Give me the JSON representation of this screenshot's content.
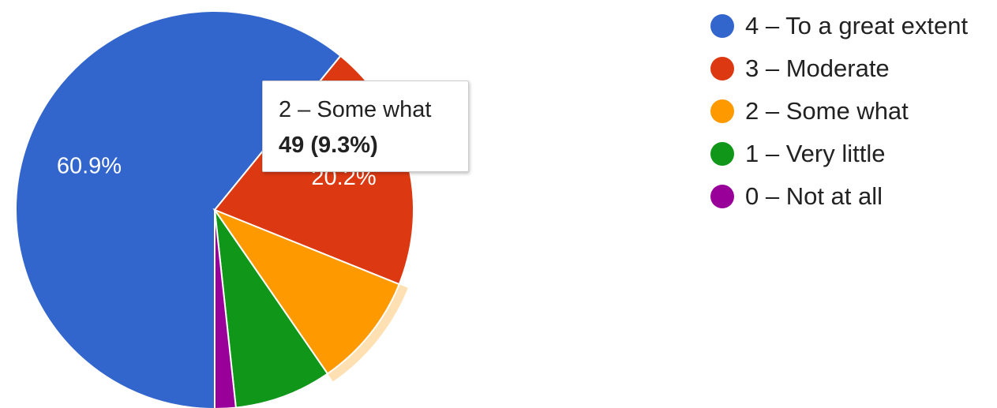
{
  "chart_data": {
    "type": "pie",
    "title": "",
    "slices": [
      {
        "label": "4 – To a great extent",
        "value": 60.9,
        "display": "60.9%",
        "color": "#3366cc"
      },
      {
        "label": "3 – Moderate",
        "value": 20.2,
        "display": "20.2%",
        "color": "#dc3912"
      },
      {
        "label": "2 – Some what",
        "value": 9.3,
        "display": "",
        "color": "#ff9900"
      },
      {
        "label": "1 – Very little",
        "value": 7.9,
        "display": "",
        "color": "#109618"
      },
      {
        "label": "0 – Not at all",
        "value": 1.7,
        "display": "",
        "color": "#990099"
      }
    ],
    "legend_position": "right",
    "highlighted_slice": 2,
    "tooltip": {
      "title": "2 – Some what",
      "value": "49 (9.3%)"
    }
  }
}
